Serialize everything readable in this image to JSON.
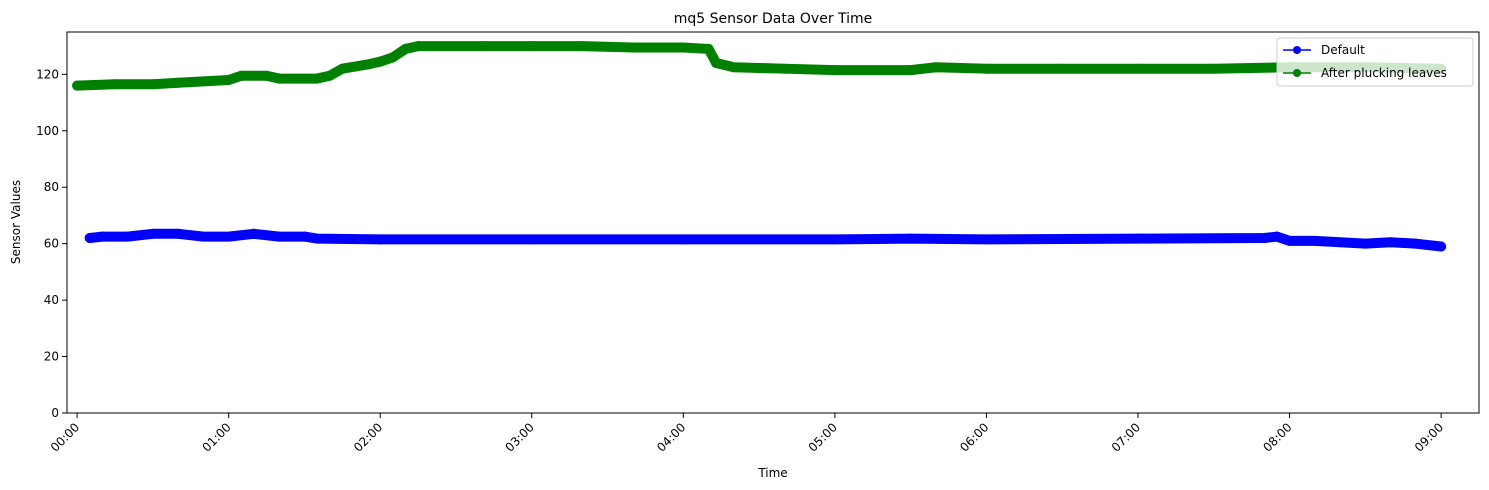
{
  "chart_data": {
    "type": "line",
    "title": "mq5 Sensor Data Over Time",
    "xlabel": "Time",
    "ylabel": "Sensor Values",
    "xlim": [
      "-00:04",
      "09:15"
    ],
    "ylim": [
      0,
      135
    ],
    "x_ticks": [
      "00:00",
      "01:00",
      "02:00",
      "03:00",
      "04:00",
      "05:00",
      "06:00",
      "07:00",
      "08:00",
      "09:00"
    ],
    "y_ticks": [
      0,
      20,
      40,
      60,
      80,
      100,
      120
    ],
    "grid": false,
    "legend": "top-right",
    "series": [
      {
        "name": "Default",
        "color": "#0000ff",
        "marker": "circle",
        "points": [
          [
            "00:05",
            62
          ],
          [
            "00:10",
            62.5
          ],
          [
            "00:20",
            62.5
          ],
          [
            "00:30",
            63.5
          ],
          [
            "00:40",
            63.5
          ],
          [
            "00:50",
            62.5
          ],
          [
            "01:00",
            62.5
          ],
          [
            "01:10",
            63.5
          ],
          [
            "01:20",
            62.5
          ],
          [
            "01:30",
            62.5
          ],
          [
            "01:35",
            61.8
          ],
          [
            "02:00",
            61.5
          ],
          [
            "03:00",
            61.5
          ],
          [
            "04:00",
            61.5
          ],
          [
            "05:00",
            61.5
          ],
          [
            "05:30",
            61.8
          ],
          [
            "06:00",
            61.5
          ],
          [
            "07:00",
            61.8
          ],
          [
            "07:50",
            62
          ],
          [
            "07:55",
            62.5
          ],
          [
            "08:00",
            61
          ],
          [
            "08:10",
            61
          ],
          [
            "08:20",
            60.5
          ],
          [
            "08:30",
            60
          ],
          [
            "08:40",
            60.5
          ],
          [
            "08:50",
            60
          ],
          [
            "09:00",
            59
          ]
        ]
      },
      {
        "name": "After plucking leaves",
        "color": "#008000",
        "marker": "circle",
        "points": [
          [
            "00:00",
            116
          ],
          [
            "00:15",
            116.5
          ],
          [
            "00:30",
            116.5
          ],
          [
            "00:40",
            117
          ],
          [
            "00:50",
            117.5
          ],
          [
            "01:00",
            118
          ],
          [
            "01:05",
            119.5
          ],
          [
            "01:15",
            119.5
          ],
          [
            "01:20",
            118.5
          ],
          [
            "01:35",
            118.5
          ],
          [
            "01:40",
            119.5
          ],
          [
            "01:45",
            122
          ],
          [
            "01:55",
            123.5
          ],
          [
            "02:00",
            124.5
          ],
          [
            "02:05",
            126
          ],
          [
            "02:10",
            129
          ],
          [
            "02:15",
            130
          ],
          [
            "02:40",
            130
          ],
          [
            "03:00",
            130
          ],
          [
            "03:20",
            130
          ],
          [
            "03:40",
            129.5
          ],
          [
            "04:00",
            129.5
          ],
          [
            "04:10",
            129
          ],
          [
            "04:13",
            124
          ],
          [
            "04:20",
            122.5
          ],
          [
            "04:40",
            122
          ],
          [
            "05:00",
            121.5
          ],
          [
            "05:30",
            121.5
          ],
          [
            "05:40",
            122.5
          ],
          [
            "06:00",
            122
          ],
          [
            "06:30",
            122
          ],
          [
            "07:00",
            122
          ],
          [
            "07:30",
            122
          ],
          [
            "08:00",
            122.5
          ],
          [
            "08:30",
            122.5
          ],
          [
            "09:00",
            122
          ]
        ]
      }
    ]
  }
}
